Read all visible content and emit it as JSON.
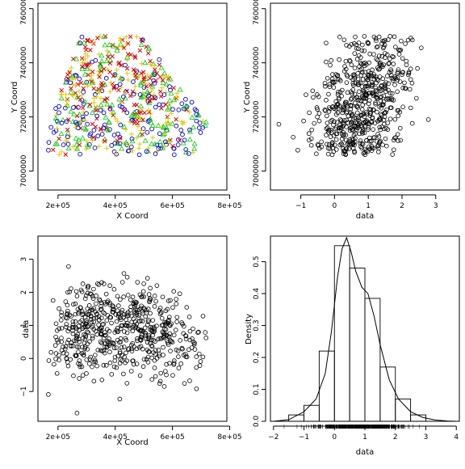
{
  "chart_data": [
    {
      "type": "scatter",
      "panel": "top-left",
      "xlabel": "X Coord",
      "ylabel": "Y Coord",
      "xlim": [
        130000,
        790000
      ],
      "ylim": [
        6930000,
        7620000
      ],
      "xticks": [
        200000,
        400000,
        600000,
        800000
      ],
      "xtick_labels": [
        "2e+05",
        "4e+05",
        "6e+05",
        "8e+05"
      ],
      "yticks": [
        7000000,
        7200000,
        7400000,
        7600000
      ],
      "ytick_labels": [
        "7000000",
        "7200000",
        "7400000",
        "7600000"
      ],
      "grid": false,
      "legend": "none",
      "note": "points colored by data quartile: low=blue circle, mid-low=green triangle, mid-high=yellow plus, high=red x",
      "series": [
        {
          "marker": "circle",
          "color": "#0000cc",
          "n": 150
        },
        {
          "marker": "triangle",
          "color": "#22cc22",
          "n": 150
        },
        {
          "marker": "plus",
          "color": "#e6c800",
          "n": 150
        },
        {
          "marker": "x",
          "color": "#dd0000",
          "n": 150
        }
      ]
    },
    {
      "type": "scatter",
      "panel": "top-right",
      "xlabel": "data",
      "ylabel": "Y Coord",
      "xlim": [
        -1.9,
        3.7
      ],
      "ylim": [
        6930000,
        7620000
      ],
      "xticks": [
        -1,
        0,
        1,
        2,
        3
      ],
      "xtick_labels": [
        "−1",
        "0",
        "1",
        "2",
        "3"
      ],
      "yticks": [
        7000000,
        7200000,
        7400000,
        7600000
      ],
      "ytick_labels": [
        "7000000",
        "7200000",
        "7400000",
        "7600000"
      ],
      "grid": false,
      "marker": "open-circle"
    },
    {
      "type": "scatter",
      "panel": "bottom-left",
      "xlabel": "X Coord",
      "ylabel": "data",
      "xlim": [
        130000,
        790000
      ],
      "ylim": [
        -1.9,
        3.7
      ],
      "xticks": [
        200000,
        400000,
        600000,
        800000
      ],
      "xtick_labels": [
        "2e+05",
        "4e+05",
        "6e+05",
        "8e+05"
      ],
      "yticks": [
        -1,
        0,
        1,
        2,
        3
      ],
      "ytick_labels": [
        "−1",
        "0",
        "1",
        "2",
        "3"
      ],
      "grid": false,
      "marker": "open-circle"
    },
    {
      "type": "histogram",
      "panel": "bottom-right",
      "xlabel": "data",
      "ylabel": "Density",
      "xlim": [
        -2.1,
        4.1
      ],
      "ylim": [
        0,
        0.58
      ],
      "xticks": [
        -2,
        -1,
        0,
        1,
        2,
        3,
        4
      ],
      "xtick_labels": [
        "−2",
        "−1",
        "0",
        "1",
        "2",
        "3",
        "4"
      ],
      "yticks": [
        0,
        0.1,
        0.2,
        0.3,
        0.4,
        0.5
      ],
      "ytick_labels": [
        "0.0",
        "0.1",
        "0.2",
        "0.3",
        "0.4",
        "0.5"
      ],
      "bin_edges": [
        -1.5,
        -1.0,
        -0.5,
        0.0,
        0.5,
        1.0,
        1.5,
        2.0,
        2.5,
        3.0
      ],
      "densities": [
        0.02,
        0.05,
        0.22,
        0.55,
        0.48,
        0.385,
        0.17,
        0.07,
        0.02
      ],
      "density_curve": {
        "x": [
          -2.0,
          -1.5,
          -1.0,
          -0.6,
          -0.3,
          -0.1,
          0.1,
          0.25,
          0.4,
          0.55,
          0.7,
          0.9,
          1.1,
          1.3,
          1.5,
          1.8,
          2.1,
          2.5,
          2.9,
          3.3,
          3.7,
          4.0
        ],
        "y": [
          0.0,
          0.005,
          0.03,
          0.07,
          0.15,
          0.28,
          0.45,
          0.54,
          0.575,
          0.53,
          0.47,
          0.42,
          0.4,
          0.33,
          0.24,
          0.13,
          0.07,
          0.03,
          0.012,
          0.004,
          0.001,
          0.0
        ]
      },
      "rug": true,
      "grid": false
    }
  ]
}
